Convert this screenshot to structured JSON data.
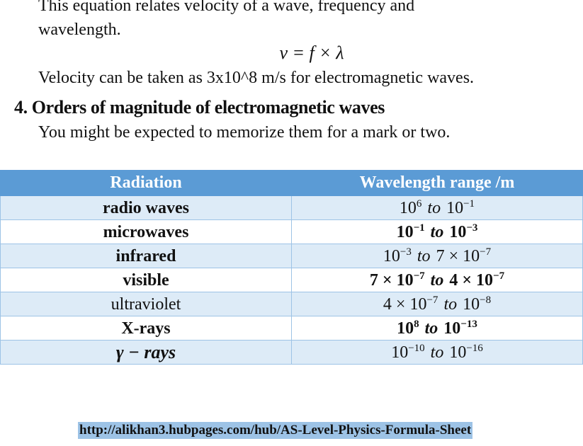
{
  "text": {
    "line1": "This equation relates velocity of a wave, frequency and",
    "line2": "wavelength.",
    "equation": "v = f × λ",
    "line3": "Velocity can be taken as 3x10^8 m/s for electromagnetic waves.",
    "heading": "4. Orders of magnitude of electromagnetic waves",
    "line4": "You might be expected to memorize them for a mark or two."
  },
  "table": {
    "header": [
      "Radiation",
      "Wavelength range /m"
    ],
    "rows": [
      {
        "name": "radio waves",
        "range": {
          "start": {
            "base": "10",
            "exponent": "6"
          },
          "word": "to",
          "end": {
            "base": "10",
            "exponent": "−1"
          }
        }
      },
      {
        "name": "microwaves",
        "range": {
          "start": {
            "base": "10",
            "exponent": "−1"
          },
          "word": "to",
          "end": {
            "base": "10",
            "exponent": "−3"
          }
        }
      },
      {
        "name": "infrared",
        "range": {
          "start": {
            "base": "10",
            "exponent": "−3"
          },
          "word": "to",
          "end": {
            "mantissa": "7 ×",
            "base": "10",
            "exponent": "−7"
          }
        }
      },
      {
        "name": "visible",
        "range": {
          "start": {
            "mantissa": "7 ×",
            "base": "10",
            "exponent": "−7"
          },
          "word": "to",
          "end": {
            "mantissa": "4 ×",
            "base": "10",
            "exponent": "−7"
          }
        }
      },
      {
        "name": "ultraviolet",
        "range": {
          "start": {
            "mantissa": "4 ×",
            "base": "10",
            "exponent": "−7"
          },
          "word": "to",
          "end": {
            "base": "10",
            "exponent": "−8"
          }
        }
      },
      {
        "name": "X-rays",
        "range": {
          "start": {
            "base": "10",
            "exponent": "8"
          },
          "word": "to",
          "end": {
            "base": "10",
            "exponent": "−13"
          }
        }
      },
      {
        "name": "γ − rays",
        "range": {
          "start": {
            "base": "10",
            "exponent": "−10"
          },
          "word": "to",
          "end": {
            "base": "10",
            "exponent": "−16"
          }
        }
      }
    ]
  },
  "footer": {
    "url": "http://alikhan3.hubpages.com/hub/AS-Level-Physics-Formula-Sheet"
  }
}
